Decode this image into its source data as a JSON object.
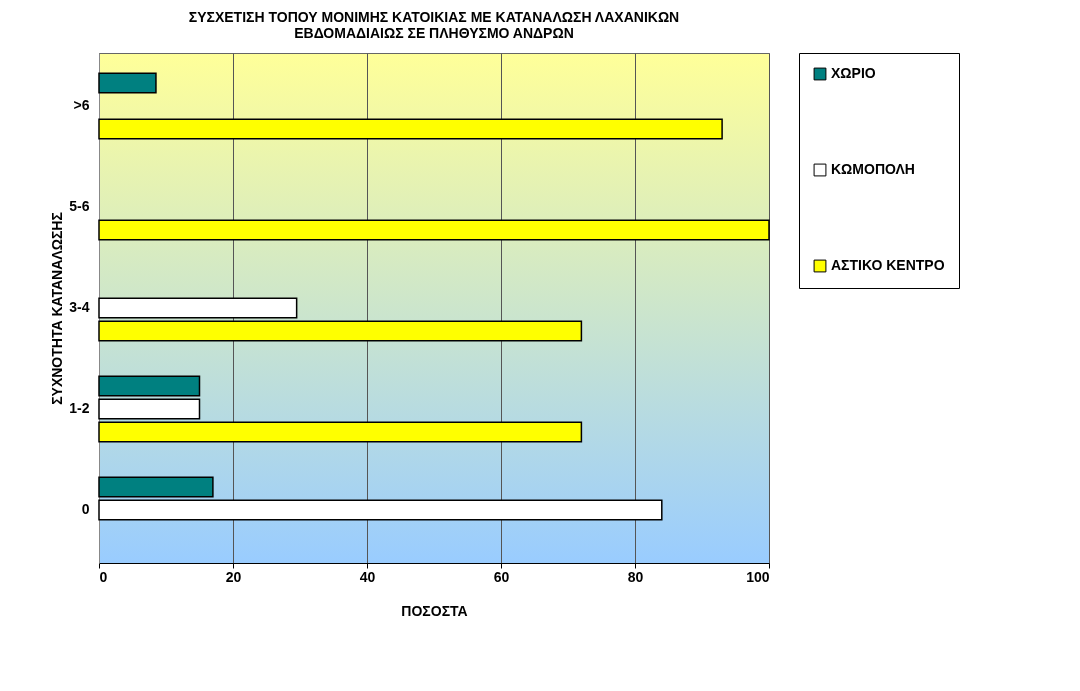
{
  "chart_data": {
    "type": "bar",
    "orientation": "horizontal",
    "title": "ΣΥΣΧΕΤΙΣΗ ΤΟΠΟΥ ΜΟΝΙΜΗΣ ΚΑΤΟΙΚΙΑΣ ΜΕ ΚΑΤΑΝΑΛΩΣΗ ΛΑΧΑΝΙΚΩΝ ΕΒΔΟΜΑΔΙΑΙΩΣ ΣΕ ΠΛΗΘΥΣΜΟ ΑΝΔΡΩΝ",
    "xlabel": "ΠΟΣΟΣΤΑ",
    "ylabel": "ΣΥΧΝΟΤΗΤΑ ΚΑΤΑΝΑΛΩΣΗΣ",
    "categories": [
      ">6",
      "5-6",
      "3-4",
      "1-2",
      "0"
    ],
    "series": [
      {
        "name": "ΧΩΡΙΟ",
        "color": "#008080",
        "values": [
          8.5,
          0,
          0,
          15,
          17
        ]
      },
      {
        "name": "ΚΩΜΟΠΟΛΗ",
        "color": "#ffffff",
        "values": [
          0,
          0,
          29.5,
          15,
          84
        ]
      },
      {
        "name": "ΑΣΤΙΚΟ ΚΕΝΤΡΟ",
        "color": "#ffff00",
        "values": [
          93,
          100,
          72,
          72,
          0
        ]
      }
    ],
    "xlim": [
      0,
      100
    ],
    "xticks": [
      0,
      20,
      40,
      60,
      80,
      100
    ],
    "grid": "x",
    "legend": "right"
  }
}
